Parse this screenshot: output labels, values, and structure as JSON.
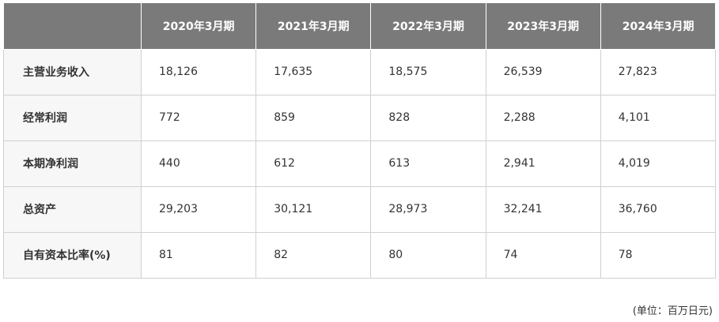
{
  "table": {
    "columns": [
      "2020年3月期",
      "2021年3月期",
      "2022年3月期",
      "2023年3月期",
      "2024年3月期"
    ],
    "rows": [
      {
        "label": "主营业务收入",
        "values": [
          "18,126",
          "17,635",
          "18,575",
          "26,539",
          "27,823"
        ]
      },
      {
        "label": "经常利润",
        "values": [
          "772",
          "859",
          "828",
          "2,288",
          "4,101"
        ]
      },
      {
        "label": "本期净利润",
        "values": [
          "440",
          "612",
          "613",
          "2,941",
          "4,019"
        ]
      },
      {
        "label": "总资产",
        "values": [
          "29,203",
          "30,121",
          "28,973",
          "32,241",
          "36,760"
        ]
      },
      {
        "label": "自有资本比率(%)",
        "values": [
          "81",
          "82",
          "80",
          "74",
          "78"
        ]
      }
    ]
  },
  "unit_note": "(单位：百万日元)",
  "colors": {
    "header_bg": "#7a7a7a",
    "row_header_bg": "#f7f7f7",
    "border": "#d0d0d0",
    "text": "#333333"
  }
}
